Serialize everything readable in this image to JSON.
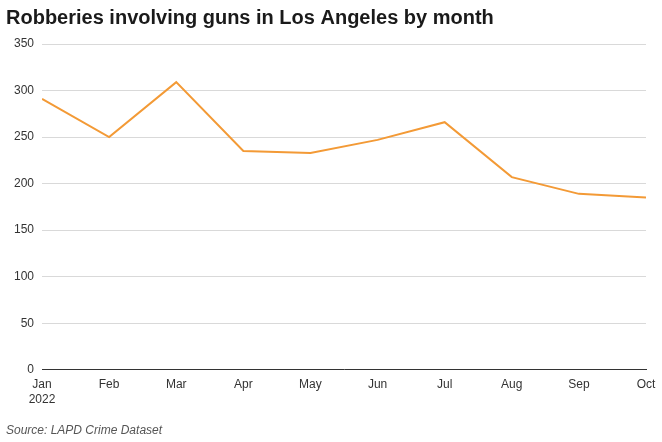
{
  "chart_data": {
    "type": "line",
    "title": "Robberies involving guns in Los Angeles by month",
    "source": "Source: LAPD Crime Dataset",
    "categories": [
      "Jan\n2022",
      "Feb",
      "Mar",
      "Apr",
      "May",
      "Jun",
      "Jul",
      "Aug",
      "Sep",
      "Oct"
    ],
    "values": [
      291,
      250,
      309,
      235,
      233,
      247,
      266,
      207,
      189,
      185
    ],
    "color": "#f39a36",
    "ylim": [
      0,
      350
    ],
    "yticks": [
      0,
      50,
      100,
      150,
      200,
      250,
      300,
      350
    ],
    "grid": true
  }
}
